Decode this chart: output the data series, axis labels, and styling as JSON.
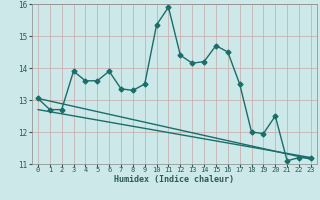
{
  "xlabel": "Humidex (Indice chaleur)",
  "ylabel": "",
  "background_color": "#cce8e8",
  "grid_color": "#b0d0d0",
  "line_color": "#1a6e6a",
  "xlim": [
    -0.5,
    23.5
  ],
  "ylim": [
    11,
    16
  ],
  "yticks": [
    11,
    12,
    13,
    14,
    15,
    16
  ],
  "xticks": [
    0,
    1,
    2,
    3,
    4,
    5,
    6,
    7,
    8,
    9,
    10,
    11,
    12,
    13,
    14,
    15,
    16,
    17,
    18,
    19,
    20,
    21,
    22,
    23
  ],
  "series": [
    {
      "x": [
        0,
        1,
        2,
        3,
        4,
        5,
        6,
        7,
        8,
        9,
        10,
        11,
        12,
        13,
        14,
        15,
        16,
        17,
        18,
        19,
        20,
        21,
        22,
        23
      ],
      "y": [
        13.05,
        12.7,
        12.7,
        13.9,
        13.6,
        13.6,
        13.9,
        13.35,
        13.3,
        13.5,
        15.35,
        15.9,
        14.4,
        14.15,
        14.2,
        14.7,
        14.5,
        13.5,
        12.0,
        11.95,
        12.5,
        11.1,
        11.2,
        11.2
      ],
      "marker": "D",
      "markersize": 2.5,
      "linewidth": 1.0
    },
    {
      "x": [
        0,
        23
      ],
      "y": [
        13.05,
        11.15
      ],
      "marker": null,
      "markersize": 0,
      "linewidth": 1.0
    },
    {
      "x": [
        0,
        23
      ],
      "y": [
        12.7,
        11.2
      ],
      "marker": null,
      "markersize": 0,
      "linewidth": 1.0
    }
  ]
}
